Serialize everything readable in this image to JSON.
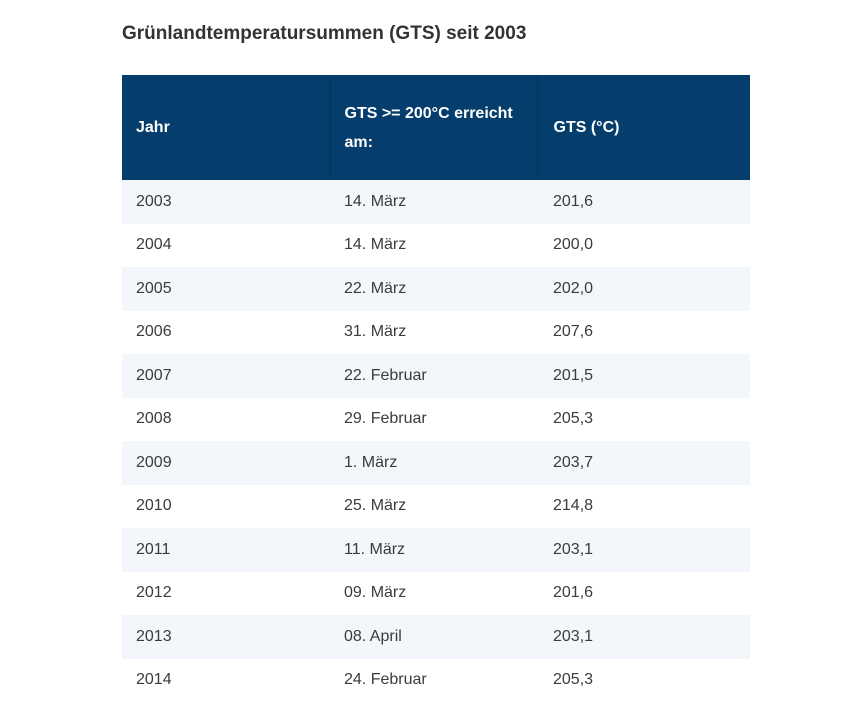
{
  "page": {
    "title": "Grünlandtemperatursummen (GTS) seit 2003"
  },
  "colors": {
    "header_background": "#053e6c",
    "header_text": "#ffffff",
    "row_alternate_background": "#f3f6fa",
    "row_background": "#ffffff",
    "cell_text": "#3b3b3b",
    "title_text": "#333333",
    "page_background": "#ffffff"
  },
  "table": {
    "columns": [
      "Jahr",
      "GTS >= 200°C erreicht am:",
      "GTS (°C)"
    ],
    "rows": [
      {
        "year": "2003",
        "date": "14. März",
        "gts": "201,6"
      },
      {
        "year": "2004",
        "date": "14. März",
        "gts": "200,0"
      },
      {
        "year": "2005",
        "date": "22. März",
        "gts": "202,0"
      },
      {
        "year": "2006",
        "date": "31. März",
        "gts": "207,6"
      },
      {
        "year": "2007",
        "date": "22. Februar",
        "gts": "201,5"
      },
      {
        "year": "2008",
        "date": "29. Februar",
        "gts": "205,3"
      },
      {
        "year": "2009",
        "date": "1. März",
        "gts": "203,7"
      },
      {
        "year": "2010",
        "date": "25. März",
        "gts": "214,8"
      },
      {
        "year": "2011",
        "date": "11. März",
        "gts": "203,1"
      },
      {
        "year": "2012",
        "date": "09. März",
        "gts": "201,6"
      },
      {
        "year": "2013",
        "date": "08. April",
        "gts": "203,1"
      },
      {
        "year": "2014",
        "date": "24. Februar",
        "gts": "205,3"
      }
    ]
  }
}
